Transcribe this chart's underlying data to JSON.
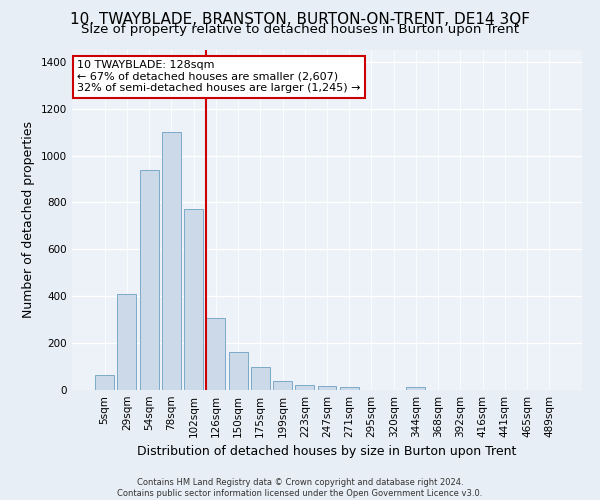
{
  "title": "10, TWAYBLADE, BRANSTON, BURTON-ON-TRENT, DE14 3QF",
  "subtitle": "Size of property relative to detached houses in Burton upon Trent",
  "xlabel": "Distribution of detached houses by size in Burton upon Trent",
  "ylabel": "Number of detached properties",
  "categories": [
    "5sqm",
    "29sqm",
    "54sqm",
    "78sqm",
    "102sqm",
    "126sqm",
    "150sqm",
    "175sqm",
    "199sqm",
    "223sqm",
    "247sqm",
    "271sqm",
    "295sqm",
    "320sqm",
    "344sqm",
    "368sqm",
    "392sqm",
    "416sqm",
    "441sqm",
    "465sqm",
    "489sqm"
  ],
  "values": [
    65,
    410,
    940,
    1100,
    770,
    305,
    160,
    100,
    37,
    20,
    17,
    13,
    0,
    0,
    13,
    0,
    0,
    0,
    0,
    0,
    0
  ],
  "bar_color": "#ccd9e8",
  "bar_edge_color": "#7aaac8",
  "vline_index": 4.58,
  "vline_color": "#cc0000",
  "annotation_text": "10 TWAYBLADE: 128sqm\n← 67% of detached houses are smaller (2,607)\n32% of semi-detached houses are larger (1,245) →",
  "annotation_box_color": "white",
  "annotation_box_edge": "#cc0000",
  "ylim": [
    0,
    1450
  ],
  "yticks": [
    0,
    200,
    400,
    600,
    800,
    1000,
    1200,
    1400
  ],
  "footnote1": "Contains HM Land Registry data © Crown copyright and database right 2024.",
  "footnote2": "Contains public sector information licensed under the Open Government Licence v3.0.",
  "bg_color": "#e8eef5",
  "plot_bg_color": "#edf2f8",
  "grid_color": "#ffffff",
  "title_fontsize": 11,
  "subtitle_fontsize": 9.5,
  "xlabel_fontsize": 9,
  "ylabel_fontsize": 9,
  "tick_fontsize": 7.5,
  "annot_fontsize": 8,
  "footnote_fontsize": 6
}
